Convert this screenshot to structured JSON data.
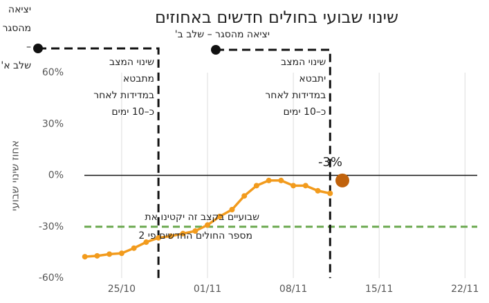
{
  "chart_data": {
    "type": "line",
    "title": "שינוי שבועי בחולים חדשים באחוזים",
    "y_label": "אחוז שינוי שבועי",
    "x": [
      "22/10",
      "23/10",
      "24/10",
      "25/10",
      "26/10",
      "27/10",
      "28/10",
      "29/10",
      "30/10",
      "31/10",
      "01/11",
      "02/11",
      "03/11",
      "04/11",
      "05/11",
      "06/11",
      "07/11",
      "08/11",
      "09/11",
      "10/11",
      "11/11"
    ],
    "series": [
      {
        "name": "שינוי שבועי",
        "color": "#f29b1d",
        "values": [
          -47.5,
          -47,
          -46,
          -45.5,
          -42.5,
          -39,
          -36.5,
          -35.5,
          -34,
          -32.5,
          -29,
          -24,
          -20,
          -12,
          -6,
          -3,
          -3,
          -6,
          -6,
          -9,
          -10.5
        ]
      }
    ],
    "highlight": {
      "x": "12/11",
      "value": -3,
      "label": "-3%",
      "color": "#c0620c"
    },
    "xlim": [
      "21/10",
      "23/11"
    ],
    "xticks": [
      "25/10",
      "01/11",
      "08/11",
      "15/11",
      "22/11"
    ],
    "ylim": [
      -60,
      60
    ],
    "yticks": [
      {
        "value": -60,
        "label": "-60%"
      },
      {
        "value": -30,
        "label": "-30%"
      },
      {
        "value": 0,
        "label": "0%"
      },
      {
        "value": 30,
        "label": "30%"
      },
      {
        "value": 60,
        "label": "60%"
      }
    ],
    "grid": "x",
    "target": {
      "value": -30,
      "color": "#6aa84f",
      "text": [
        "שבועיים בקצב זה יקטינו את",
        "מספר החולים החדשים פי 2"
      ]
    },
    "phases": [
      {
        "x": "28/10",
        "label": [
          "יציאה",
          "מהסגר",
          "–",
          "שלב א'"
        ],
        "text": [
          "שינוי המצב",
          "מתבטא",
          "במדידות לאחר",
          "כ–10 ימים"
        ]
      },
      {
        "x": "11/11",
        "label": [
          "יציאה מהסגר – שלב ב'"
        ],
        "text": [
          "שינוי המצב",
          "יתבטא",
          "במדידות לאחר",
          "כ–10 ימים"
        ]
      }
    ]
  }
}
